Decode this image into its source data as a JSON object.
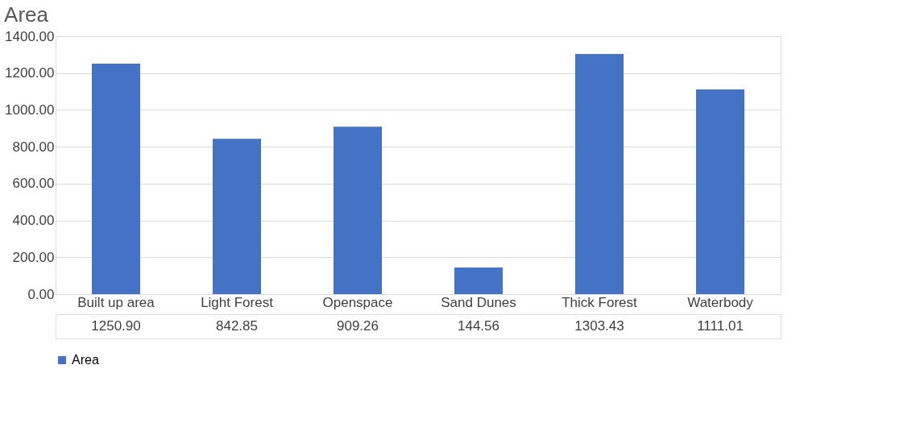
{
  "chart_data": {
    "type": "bar",
    "title": "Area",
    "categories": [
      "Built up area",
      "Light Forest",
      "Openspace",
      "Sand Dunes",
      "Thick Forest",
      "Waterbody"
    ],
    "series": [
      {
        "name": "Area",
        "color": "#4472c4",
        "values": [
          1250.9,
          842.85,
          909.26,
          144.56,
          1303.43,
          1111.01
        ],
        "value_labels": [
          "1250.90",
          "842.85",
          "909.26",
          "144.56",
          "1303.43",
          "1111.01"
        ]
      }
    ],
    "ylim": [
      0,
      1400
    ],
    "yticks": [
      {
        "value": 0,
        "label": "0.00"
      },
      {
        "value": 200,
        "label": "200.00"
      },
      {
        "value": 400,
        "label": "400.00"
      },
      {
        "value": 600,
        "label": "600.00"
      },
      {
        "value": 800,
        "label": "800.00"
      },
      {
        "value": 1000,
        "label": "1000.00"
      },
      {
        "value": 1200,
        "label": "1200.00"
      },
      {
        "value": 1400,
        "label": "1400.00"
      }
    ],
    "grid": "y",
    "legend": "bottom"
  }
}
